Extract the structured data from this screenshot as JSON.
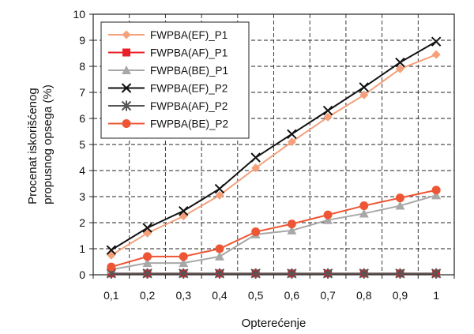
{
  "chart_data": {
    "type": "line",
    "title": "",
    "xlabel": "Opterećenje",
    "ylabel_lines": [
      "Procenat iskorišćenog",
      "propusnog opsega (%)"
    ],
    "x": [
      "0,1",
      "0,2",
      "0,3",
      "0,4",
      "0,5",
      "0,6",
      "0,7",
      "0,8",
      "0,9",
      "1"
    ],
    "y_ticks": [
      "0",
      "1",
      "2",
      "3",
      "4",
      "5",
      "6",
      "7",
      "8",
      "9",
      "10"
    ],
    "ylim": [
      0,
      10
    ],
    "grid": "dashed",
    "legend_position": "top-left",
    "series": [
      {
        "name": "FWPBA(EF)_P1",
        "color": "#f4a07a",
        "marker": "diamond",
        "values": [
          0.75,
          1.6,
          2.25,
          3.05,
          4.1,
          5.1,
          6.05,
          6.9,
          7.9,
          8.45
        ]
      },
      {
        "name": "FWPBA(AF)_P1",
        "color": "#e8202a",
        "marker": "square",
        "values": [
          0.05,
          0.05,
          0.05,
          0.05,
          0.05,
          0.05,
          0.05,
          0.05,
          0.05,
          0.05
        ]
      },
      {
        "name": "FWPBA(BE)_P1",
        "color": "#a8a8a8",
        "marker": "triangle",
        "values": [
          0.2,
          0.45,
          0.45,
          0.7,
          1.55,
          1.7,
          2.1,
          2.35,
          2.65,
          3.05
        ]
      },
      {
        "name": "FWPBA(EF)_P2",
        "color": "#111111",
        "marker": "x",
        "values": [
          0.95,
          1.8,
          2.45,
          3.3,
          4.5,
          5.4,
          6.3,
          7.2,
          8.15,
          8.95
        ]
      },
      {
        "name": "FWPBA(AF)_P2",
        "color": "#555555",
        "marker": "star",
        "values": [
          0.05,
          0.05,
          0.05,
          0.05,
          0.05,
          0.05,
          0.05,
          0.05,
          0.05,
          0.05
        ]
      },
      {
        "name": "FWPBA(BE)_P2",
        "color": "#ee5534",
        "marker": "circle",
        "values": [
          0.3,
          0.7,
          0.7,
          1.0,
          1.65,
          1.95,
          2.3,
          2.65,
          2.95,
          3.25
        ]
      }
    ]
  }
}
